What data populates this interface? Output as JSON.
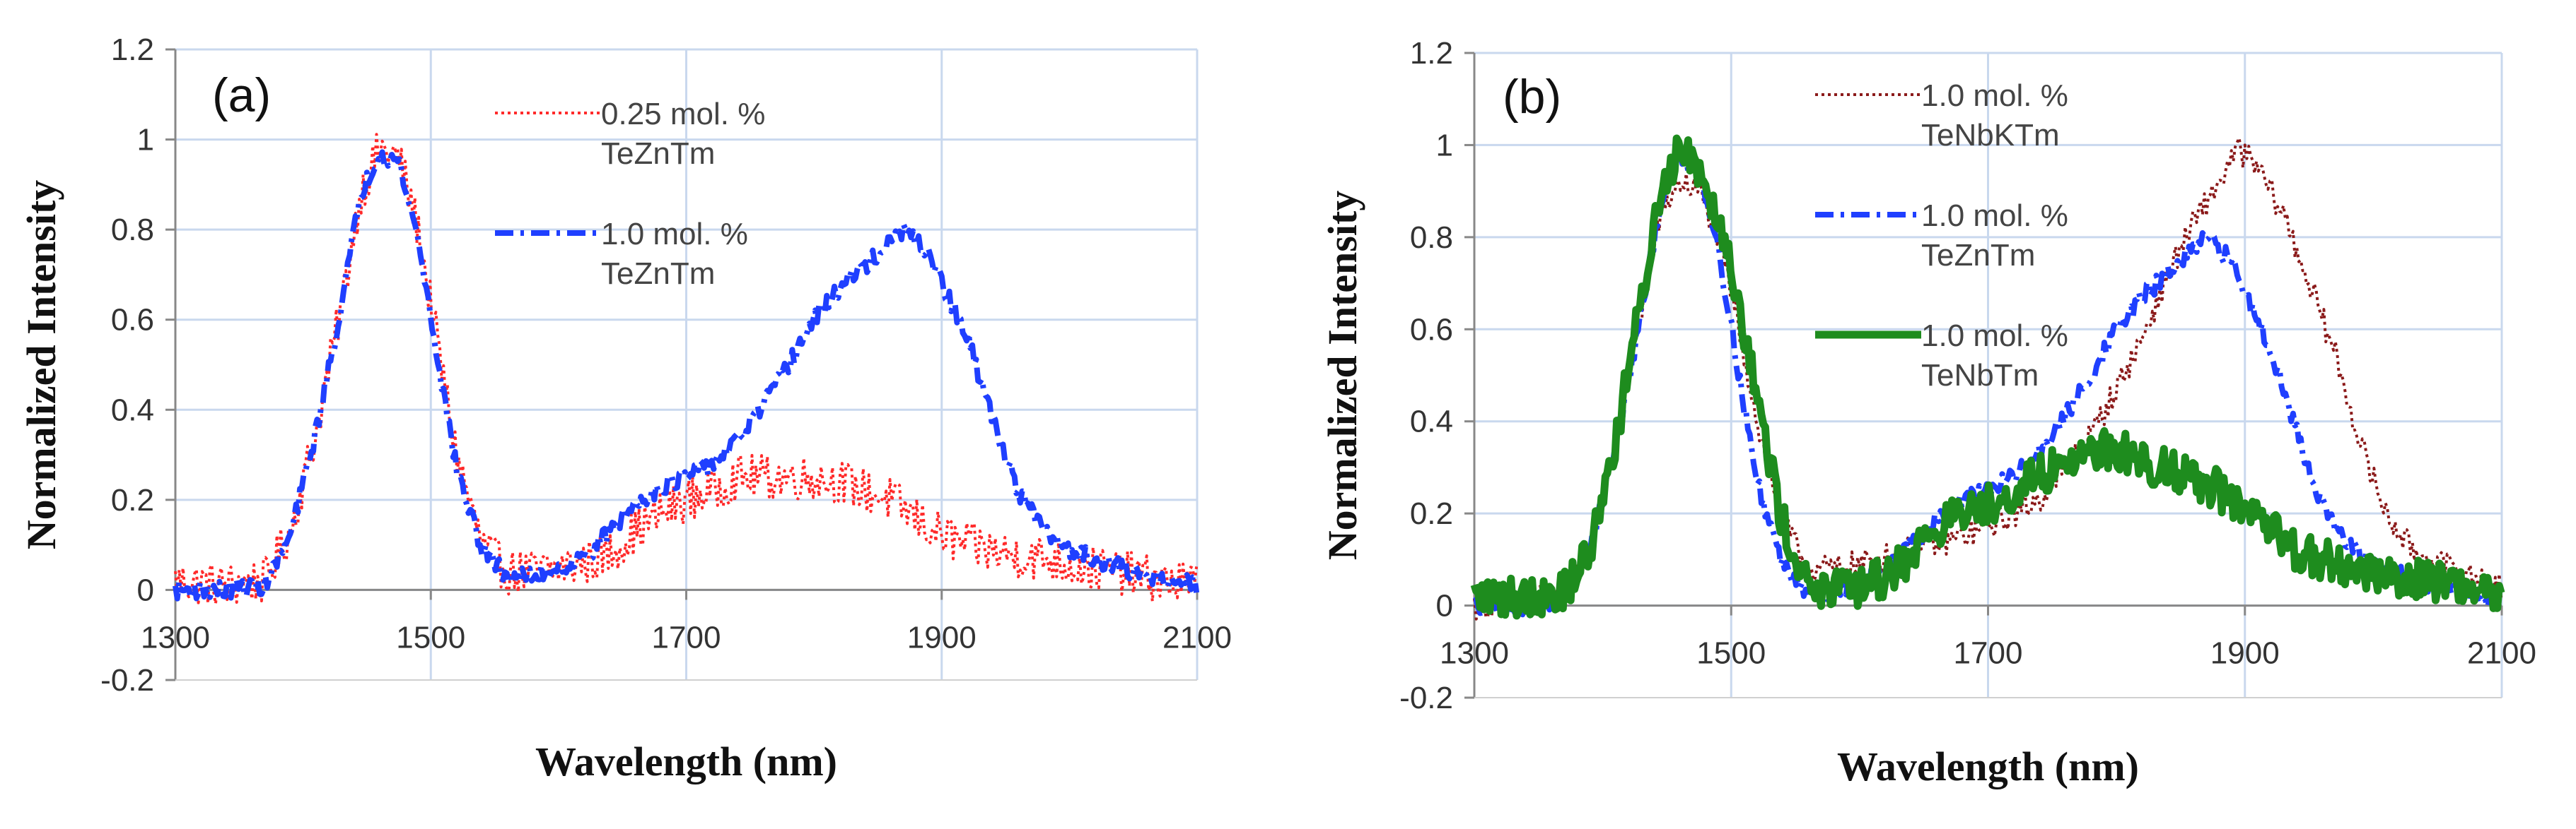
{
  "chart_data": [
    {
      "type": "line",
      "panel_label": "(a)",
      "xlabel": "Wavelength (nm)",
      "ylabel": "Normalized Intensity",
      "xlim": [
        1300,
        2100
      ],
      "ylim": [
        -0.2,
        1.2
      ],
      "x_ticks": [
        1300,
        1500,
        1700,
        1900,
        2100
      ],
      "x_tick_labels": [
        "1300",
        "1500",
        "1700",
        "1900",
        "2100"
      ],
      "y_ticks": [
        -0.2,
        0,
        0.2,
        0.4,
        0.6,
        0.8,
        1,
        1.2
      ],
      "y_tick_labels": [
        "-0.2",
        "0",
        "0.2",
        "0.4",
        "0.6",
        "0.8",
        "1",
        "1.2"
      ],
      "grid": true,
      "legend_position": "top-right",
      "series": [
        {
          "name": "0.25 mol. % TeZnTm",
          "legend_lines": [
            "0.25 mol. %",
            "TeZnTm"
          ],
          "color": "#ff2a2a",
          "style": "dotted",
          "noise": 0.05,
          "points": [
            [
              1300,
              0.02
            ],
            [
              1340,
              0.01
            ],
            [
              1370,
              0.02
            ],
            [
              1390,
              0.13
            ],
            [
              1410,
              0.35
            ],
            [
              1430,
              0.63
            ],
            [
              1445,
              0.88
            ],
            [
              1460,
              0.98
            ],
            [
              1475,
              0.96
            ],
            [
              1490,
              0.8
            ],
            [
              1505,
              0.55
            ],
            [
              1520,
              0.3
            ],
            [
              1540,
              0.1
            ],
            [
              1560,
              0.04
            ],
            [
              1580,
              0.04
            ],
            [
              1600,
              0.05
            ],
            [
              1620,
              0.06
            ],
            [
              1640,
              0.08
            ],
            [
              1660,
              0.13
            ],
            [
              1680,
              0.17
            ],
            [
              1700,
              0.2
            ],
            [
              1720,
              0.22
            ],
            [
              1740,
              0.25
            ],
            [
              1760,
              0.25
            ],
            [
              1780,
              0.25
            ],
            [
              1800,
              0.25
            ],
            [
              1820,
              0.24
            ],
            [
              1840,
              0.22
            ],
            [
              1860,
              0.2
            ],
            [
              1880,
              0.16
            ],
            [
              1900,
              0.12
            ],
            [
              1920,
              0.1
            ],
            [
              1950,
              0.08
            ],
            [
              1980,
              0.07
            ],
            [
              2010,
              0.05
            ],
            [
              2040,
              0.04
            ],
            [
              2070,
              0.02
            ],
            [
              2100,
              0.01
            ]
          ]
        },
        {
          "name": "1.0 mol. % TeZnTm",
          "legend_lines": [
            "1.0 mol. %",
            "TeZnTm"
          ],
          "color": "#1f3fff",
          "style": "dashdot",
          "noise": 0.02,
          "points": [
            [
              1300,
              0.0
            ],
            [
              1340,
              0.0
            ],
            [
              1370,
              0.01
            ],
            [
              1390,
              0.12
            ],
            [
              1410,
              0.35
            ],
            [
              1430,
              0.63
            ],
            [
              1445,
              0.88
            ],
            [
              1460,
              0.97
            ],
            [
              1475,
              0.95
            ],
            [
              1490,
              0.78
            ],
            [
              1505,
              0.52
            ],
            [
              1520,
              0.27
            ],
            [
              1540,
              0.09
            ],
            [
              1560,
              0.03
            ],
            [
              1580,
              0.03
            ],
            [
              1600,
              0.05
            ],
            [
              1620,
              0.07
            ],
            [
              1640,
              0.13
            ],
            [
              1660,
              0.19
            ],
            [
              1680,
              0.23
            ],
            [
              1700,
              0.25
            ],
            [
              1720,
              0.28
            ],
            [
              1740,
              0.33
            ],
            [
              1760,
              0.41
            ],
            [
              1780,
              0.5
            ],
            [
              1800,
              0.6
            ],
            [
              1820,
              0.67
            ],
            [
              1840,
              0.72
            ],
            [
              1860,
              0.77
            ],
            [
              1870,
              0.8
            ],
            [
              1880,
              0.77
            ],
            [
              1890,
              0.75
            ],
            [
              1900,
              0.68
            ],
            [
              1920,
              0.56
            ],
            [
              1940,
              0.38
            ],
            [
              1960,
              0.22
            ],
            [
              1980,
              0.13
            ],
            [
              2000,
              0.09
            ],
            [
              2020,
              0.07
            ],
            [
              2050,
              0.04
            ],
            [
              2100,
              0.01
            ]
          ]
        }
      ]
    },
    {
      "type": "line",
      "panel_label": "(b)",
      "xlabel": "Wavelength (nm)",
      "ylabel": "Normalized Intensity",
      "xlim": [
        1300,
        2100
      ],
      "ylim": [
        -0.2,
        1.2
      ],
      "x_ticks": [
        1300,
        1500,
        1700,
        1900,
        2100
      ],
      "x_tick_labels": [
        "1300",
        "1500",
        "1700",
        "1900",
        "2100"
      ],
      "y_ticks": [
        -0.2,
        0,
        0.2,
        0.4,
        0.6,
        0.8,
        1,
        1.2
      ],
      "y_tick_labels": [
        "-0.2",
        "0",
        "0.2",
        "0.4",
        "0.6",
        "0.8",
        "1",
        "1.2"
      ],
      "grid": true,
      "legend_position": "top-right",
      "series": [
        {
          "name": "1.0 mol. % TeNbKTm",
          "legend_lines": [
            "1.0 mol. %",
            "TeNbKTm"
          ],
          "color": "#8b1a1a",
          "style": "dotted",
          "noise": 0.03,
          "points": [
            [
              1300,
              0.0
            ],
            [
              1340,
              0.01
            ],
            [
              1370,
              0.03
            ],
            [
              1390,
              0.12
            ],
            [
              1410,
              0.35
            ],
            [
              1430,
              0.64
            ],
            [
              1445,
              0.85
            ],
            [
              1460,
              0.92
            ],
            [
              1475,
              0.9
            ],
            [
              1490,
              0.8
            ],
            [
              1505,
              0.62
            ],
            [
              1520,
              0.4
            ],
            [
              1540,
              0.18
            ],
            [
              1560,
              0.08
            ],
            [
              1580,
              0.08
            ],
            [
              1600,
              0.09
            ],
            [
              1640,
              0.12
            ],
            [
              1680,
              0.15
            ],
            [
              1700,
              0.17
            ],
            [
              1720,
              0.2
            ],
            [
              1740,
              0.23
            ],
            [
              1760,
              0.3
            ],
            [
              1780,
              0.37
            ],
            [
              1800,
              0.47
            ],
            [
              1820,
              0.58
            ],
            [
              1840,
              0.72
            ],
            [
              1860,
              0.83
            ],
            [
              1880,
              0.92
            ],
            [
              1895,
              0.99
            ],
            [
              1910,
              0.95
            ],
            [
              1930,
              0.85
            ],
            [
              1950,
              0.7
            ],
            [
              1970,
              0.55
            ],
            [
              1990,
              0.35
            ],
            [
              2010,
              0.2
            ],
            [
              2030,
              0.12
            ],
            [
              2060,
              0.08
            ],
            [
              2100,
              0.04
            ]
          ]
        },
        {
          "name": "1.0 mol. % TeZnTm",
          "legend_lines": [
            "1.0 mol. %",
            "TeZnTm"
          ],
          "color": "#1f3fff",
          "style": "dashdot",
          "noise": 0.02,
          "points": [
            [
              1300,
              0.0
            ],
            [
              1340,
              0.0
            ],
            [
              1370,
              0.01
            ],
            [
              1390,
              0.12
            ],
            [
              1410,
              0.35
            ],
            [
              1430,
              0.63
            ],
            [
              1445,
              0.88
            ],
            [
              1460,
              0.97
            ],
            [
              1475,
              0.95
            ],
            [
              1490,
              0.78
            ],
            [
              1505,
              0.52
            ],
            [
              1520,
              0.27
            ],
            [
              1540,
              0.09
            ],
            [
              1560,
              0.03
            ],
            [
              1580,
              0.03
            ],
            [
              1600,
              0.05
            ],
            [
              1620,
              0.07
            ],
            [
              1640,
              0.13
            ],
            [
              1660,
              0.19
            ],
            [
              1680,
              0.23
            ],
            [
              1700,
              0.25
            ],
            [
              1720,
              0.28
            ],
            [
              1740,
              0.33
            ],
            [
              1760,
              0.41
            ],
            [
              1780,
              0.5
            ],
            [
              1800,
              0.6
            ],
            [
              1820,
              0.67
            ],
            [
              1840,
              0.72
            ],
            [
              1860,
              0.77
            ],
            [
              1870,
              0.8
            ],
            [
              1880,
              0.77
            ],
            [
              1890,
              0.75
            ],
            [
              1900,
              0.68
            ],
            [
              1920,
              0.56
            ],
            [
              1940,
              0.38
            ],
            [
              1960,
              0.22
            ],
            [
              1980,
              0.13
            ],
            [
              2000,
              0.09
            ],
            [
              2020,
              0.07
            ],
            [
              2050,
              0.04
            ],
            [
              2100,
              0.01
            ]
          ]
        },
        {
          "name": "1.0 mol. % TeNbTm",
          "legend_lines": [
            "1.0 mol. %",
            "TeNbTm"
          ],
          "color": "#1e8c1e",
          "style": "solid",
          "noise": 0.045,
          "points": [
            [
              1300,
              0.02
            ],
            [
              1340,
              0.02
            ],
            [
              1370,
              0.03
            ],
            [
              1390,
              0.12
            ],
            [
              1410,
              0.36
            ],
            [
              1430,
              0.66
            ],
            [
              1445,
              0.9
            ],
            [
              1460,
              1.0
            ],
            [
              1470,
              0.98
            ],
            [
              1490,
              0.85
            ],
            [
              1505,
              0.68
            ],
            [
              1520,
              0.45
            ],
            [
              1540,
              0.18
            ],
            [
              1560,
              0.04
            ],
            [
              1580,
              0.03
            ],
            [
              1600,
              0.04
            ],
            [
              1620,
              0.06
            ],
            [
              1640,
              0.11
            ],
            [
              1660,
              0.17
            ],
            [
              1680,
              0.2
            ],
            [
              1700,
              0.22
            ],
            [
              1720,
              0.25
            ],
            [
              1740,
              0.28
            ],
            [
              1760,
              0.31
            ],
            [
              1780,
              0.34
            ],
            [
              1800,
              0.34
            ],
            [
              1820,
              0.31
            ],
            [
              1840,
              0.3
            ],
            [
              1860,
              0.28
            ],
            [
              1880,
              0.25
            ],
            [
              1900,
              0.2
            ],
            [
              1920,
              0.16
            ],
            [
              1940,
              0.12
            ],
            [
              1960,
              0.1
            ],
            [
              1980,
              0.08
            ],
            [
              2000,
              0.07
            ],
            [
              2030,
              0.06
            ],
            [
              2060,
              0.05
            ],
            [
              2100,
              0.03
            ]
          ]
        }
      ]
    }
  ]
}
